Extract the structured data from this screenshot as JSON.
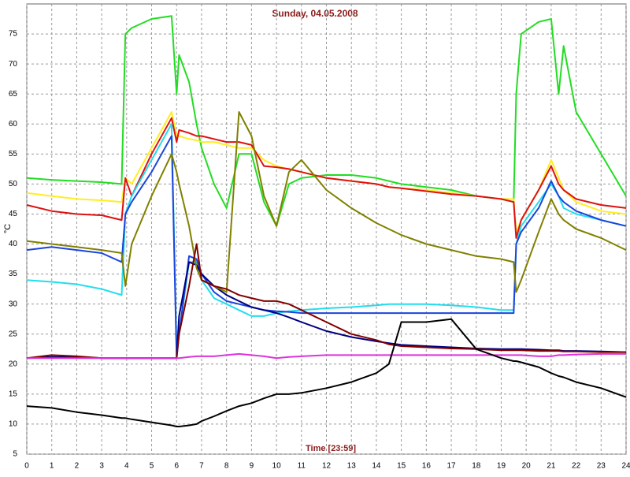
{
  "chart_data": {
    "type": "line",
    "title": "Sunday, 04.05.2008",
    "x_label": "Time [23:59]",
    "y_label": "°C",
    "x": [
      0,
      1,
      2,
      3,
      3.8,
      3.95,
      4.2,
      5,
      5.8,
      6,
      6.1,
      6.5,
      6.8,
      7,
      7.5,
      8,
      8.5,
      9,
      9.5,
      10,
      10.5,
      11,
      12,
      13,
      14,
      14.5,
      15,
      16,
      17,
      18,
      19,
      19.5,
      19.6,
      19.8,
      20.5,
      21,
      21.3,
      21.5,
      22,
      23,
      24
    ],
    "series": [
      {
        "color": "#22dd22",
        "values": [
          51,
          50.7,
          50.5,
          50.3,
          50,
          75,
          76,
          77.5,
          78,
          65,
          71.5,
          67,
          60,
          56,
          50,
          46,
          55,
          55,
          47,
          43,
          50,
          51,
          51.5,
          51.5,
          51,
          50.5,
          50,
          49.5,
          49,
          48,
          47.5,
          47,
          65,
          75,
          77,
          77.5,
          65,
          73,
          62,
          55,
          48
        ]
      },
      {
        "color": "#ffee22",
        "values": [
          48.5,
          48,
          47.5,
          47.3,
          47,
          51,
          50,
          56,
          62,
          58,
          58,
          57.5,
          57.3,
          57,
          57,
          56.5,
          56,
          56,
          54,
          53,
          52.5,
          52,
          51,
          50.5,
          50,
          49.5,
          49.3,
          49,
          48.5,
          48,
          47.5,
          47.5,
          42,
          44,
          49,
          54,
          51,
          49,
          47,
          45.5,
          45
        ]
      },
      {
        "color": "#dd1111",
        "values": [
          46.5,
          45.5,
          45,
          44.8,
          44,
          51,
          48,
          55,
          61,
          57,
          59,
          58.5,
          58,
          58,
          57.5,
          57,
          57,
          56.5,
          53,
          52.8,
          52.5,
          52,
          51,
          50.5,
          50,
          49.5,
          49.3,
          48.8,
          48.3,
          48,
          47.5,
          47,
          41,
          44,
          49,
          53,
          50,
          49,
          47.5,
          46.5,
          46
        ]
      },
      {
        "color": "#22ddee",
        "values": [
          34,
          33.7,
          33.3,
          32.5,
          31.5,
          45,
          48,
          54,
          60,
          22,
          25,
          37,
          37,
          34,
          31,
          30,
          29,
          28,
          28,
          28.5,
          28.8,
          29,
          29.3,
          29.5,
          29.8,
          30,
          30,
          30,
          29.8,
          29.5,
          29,
          29,
          40,
          43,
          47,
          50,
          48,
          46,
          45,
          44,
          43
        ]
      },
      {
        "color": "#1a44dd",
        "values": [
          39,
          39.5,
          39,
          38.5,
          37,
          45,
          47,
          52,
          58,
          21,
          25,
          38,
          37.5,
          35,
          32,
          30.5,
          30,
          29.5,
          29,
          28.8,
          28.7,
          28.5,
          28.5,
          28.5,
          28.5,
          28.5,
          28.5,
          28.5,
          28.5,
          28.5,
          28.5,
          28.5,
          40,
          42,
          46,
          50.5,
          48,
          47,
          45.5,
          44,
          43
        ]
      },
      {
        "color": "#000080",
        "values": [
          21,
          21.2,
          21.2,
          21,
          21,
          21,
          21,
          21,
          21,
          21,
          28,
          37,
          36.5,
          35,
          33,
          31.5,
          30.5,
          29.5,
          29,
          28.5,
          27.8,
          27,
          25.5,
          24.5,
          23.8,
          23.5,
          23.2,
          23,
          22.8,
          22.6,
          22.5,
          22.5,
          22.5,
          22.5,
          22.4,
          22.3,
          22.3,
          22.2,
          22.2,
          22.1,
          22
        ]
      },
      {
        "color": "#808000",
        "values": [
          40.5,
          40,
          39.5,
          39,
          38.5,
          33,
          40,
          48,
          55,
          52,
          50,
          43,
          36,
          34,
          33,
          32,
          62,
          58,
          48,
          43,
          52,
          54,
          49,
          46,
          43.5,
          42.5,
          41.5,
          40,
          39,
          38,
          37.5,
          37,
          32,
          34,
          42,
          47.5,
          45,
          44,
          42.5,
          41,
          39
        ]
      },
      {
        "color": "#800000",
        "values": [
          21,
          21.5,
          21.3,
          21,
          21,
          21,
          21,
          21,
          21,
          21,
          25,
          33,
          40,
          34,
          33,
          32.5,
          31.5,
          31,
          30.5,
          30.5,
          30,
          29,
          27,
          25,
          24,
          23.3,
          23,
          22.8,
          22.6,
          22.5,
          22.3,
          22.3,
          22.3,
          22.3,
          22.2,
          22.2,
          22.2,
          22.1,
          22.1,
          22,
          22
        ]
      },
      {
        "color": "#dd33dd",
        "values": [
          21,
          21,
          21,
          21,
          21,
          21,
          21,
          21,
          21,
          21,
          21,
          21.2,
          21.3,
          21.3,
          21.3,
          21.5,
          21.7,
          21.5,
          21.3,
          21,
          21.2,
          21.3,
          21.5,
          21.5,
          21.5,
          21.5,
          21.5,
          21.5,
          21.5,
          21.5,
          21.5,
          21.5,
          21.5,
          21.5,
          21.3,
          21.3,
          21.5,
          21.5,
          21.6,
          21.7,
          21.7
        ]
      },
      {
        "color": "#000000",
        "values": [
          13,
          12.7,
          12,
          11.5,
          11,
          11,
          10.8,
          10.3,
          9.8,
          9.6,
          9.6,
          9.8,
          10,
          10.5,
          11.3,
          12.2,
          13,
          13.5,
          14.3,
          15,
          15,
          15.2,
          16,
          17,
          18.5,
          20,
          27,
          27,
          27.5,
          22.5,
          21,
          20.5,
          20.5,
          20.3,
          19.5,
          18.5,
          18,
          17.8,
          17,
          16,
          14.5
        ]
      }
    ],
    "xlim": [
      0,
      24
    ],
    "xticks": [
      0,
      1,
      2,
      3,
      4,
      5,
      6,
      7,
      8,
      9,
      10,
      11,
      12,
      13,
      14,
      15,
      16,
      17,
      18,
      19,
      20,
      21,
      22,
      23,
      24
    ],
    "ylim": [
      5,
      80
    ],
    "yticks": [
      5,
      10,
      15,
      20,
      25,
      30,
      35,
      40,
      45,
      50,
      55,
      60,
      65,
      70,
      75
    ],
    "grid": true
  }
}
